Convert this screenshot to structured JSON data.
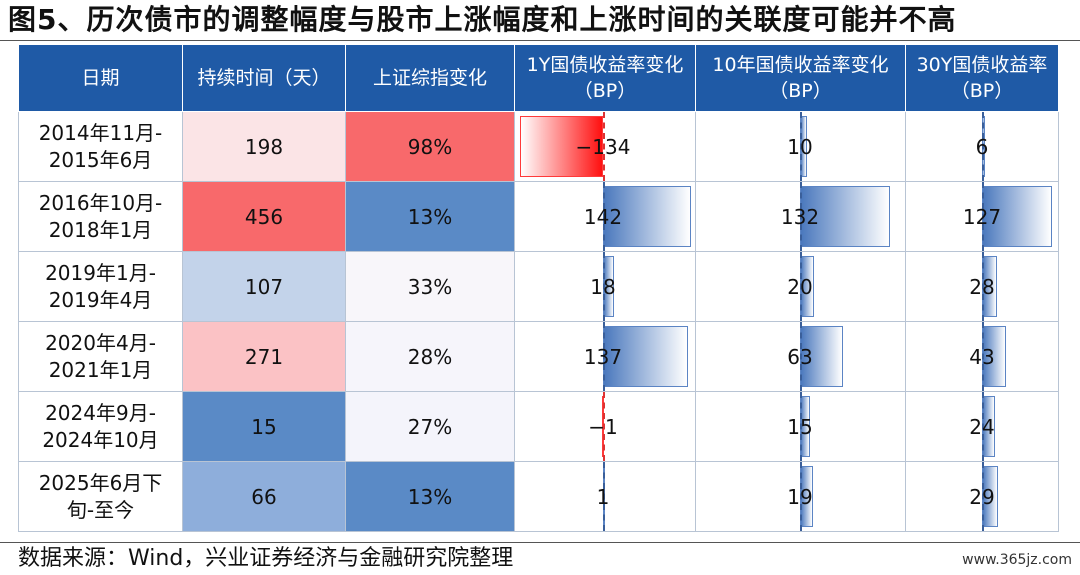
{
  "title": "图5、历次债市的调整幅度与股市上涨幅度和上涨时间的关联度可能并不高",
  "source": "数据来源：Wind，兴业证券经济与金融研究院整理",
  "watermark": "www.365jz.com",
  "headers": [
    "日期",
    "持续时间（天）",
    "上证综指变化",
    "1Y国债收益率变化（BP）",
    "10年国债收益率变化（BP）",
    "30Y国债收益率（BP）"
  ],
  "chart_data": {
    "type": "table",
    "columns": [
      "日期",
      "持续时间（天）",
      "上证综指变化",
      "1Y国债收益率变化（BP）",
      "10年国债收益率变化（BP）",
      "30Y国债收益率（BP）"
    ],
    "rows": [
      {
        "date": [
          "2014年11月-",
          "2015年6月"
        ],
        "days": "198",
        "index_change": "98%",
        "y1": -134,
        "y10": 10,
        "y30": 6,
        "days_color": "#fbe4e6",
        "idx_color": "#f8696b"
      },
      {
        "date": [
          "2016年10月-",
          "2018年1月"
        ],
        "days": "456",
        "index_change": "13%",
        "y1": 142,
        "y10": 132,
        "y30": 127,
        "days_color": "#f8696b",
        "idx_color": "#5a8ac6"
      },
      {
        "date": [
          "2019年1月-",
          "2019年4月"
        ],
        "days": "107",
        "index_change": "33%",
        "y1": 18,
        "y10": 20,
        "y30": 28,
        "days_color": "#c3d3ea",
        "idx_color": "#f8f6fa"
      },
      {
        "date": [
          "2020年4月-",
          "2021年1月"
        ],
        "days": "271",
        "index_change": "28%",
        "y1": 137,
        "y10": 63,
        "y30": 43,
        "days_color": "#fbc2c5",
        "idx_color": "#f6f5fb"
      },
      {
        "date": [
          "2024年9月-",
          "2024年10月"
        ],
        "days": "15",
        "index_change": "27%",
        "y1": -1,
        "y10": 15,
        "y30": 24,
        "days_color": "#5a8ac6",
        "idx_color": "#f4f4fb"
      },
      {
        "date": [
          "2025年6月下",
          "旬-至今"
        ],
        "days": "66",
        "index_change": "13%",
        "y1": 1,
        "y10": 19,
        "y30": 29,
        "days_color": "#8eaedb",
        "idx_color": "#5a8ac6"
      }
    ]
  }
}
